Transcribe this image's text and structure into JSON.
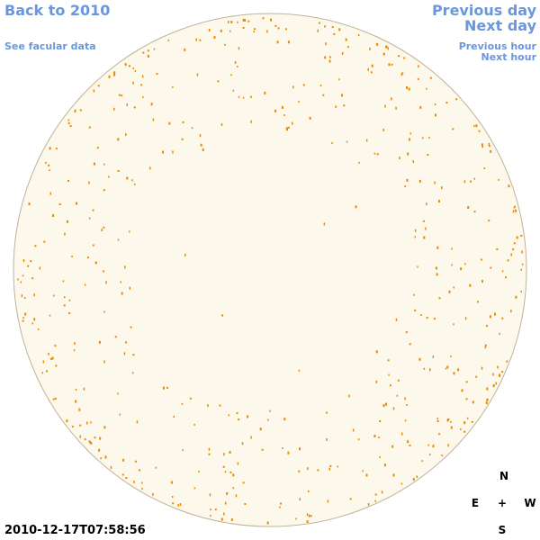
{
  "links": {
    "back": "Back to 2010",
    "facular": "See facular data",
    "previous_day": "Previous day",
    "next_day": "Next day",
    "previous_hour": "Previous hour",
    "next_hour": "Next hour"
  },
  "timestamp": "2010-12-17T07:58:56",
  "compass": {
    "north": "N",
    "east": "E",
    "center": "+",
    "west": "W",
    "south": "S"
  }
}
